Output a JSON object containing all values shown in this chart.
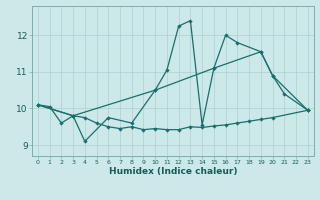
{
  "xlabel": "Humidex (Indice chaleur)",
  "xlim": [
    -0.5,
    23.5
  ],
  "ylim": [
    8.7,
    12.8
  ],
  "yticks": [
    9,
    10,
    11,
    12
  ],
  "xticks": [
    0,
    1,
    2,
    3,
    4,
    5,
    6,
    7,
    8,
    9,
    10,
    11,
    12,
    13,
    14,
    15,
    16,
    17,
    18,
    19,
    20,
    21,
    22,
    23
  ],
  "background_color": "#cce8e8",
  "grid_color": "#aad0d0",
  "line_color": "#1a6e6e",
  "series": [
    {
      "x": [
        0,
        1,
        2,
        3,
        4,
        5,
        6,
        7,
        8,
        9,
        10,
        11,
        12,
        13,
        14,
        15,
        16,
        17,
        18,
        19,
        20,
        23
      ],
      "y": [
        10.1,
        10.05,
        9.6,
        9.8,
        9.75,
        9.6,
        9.5,
        9.45,
        9.5,
        9.42,
        9.45,
        9.42,
        9.42,
        9.5,
        9.48,
        9.52,
        9.55,
        9.6,
        9.65,
        9.7,
        9.75,
        9.95
      ]
    },
    {
      "x": [
        0,
        3,
        4,
        6,
        8,
        10,
        11,
        12,
        13,
        14,
        15,
        16,
        17,
        19,
        20,
        21,
        23
      ],
      "y": [
        10.1,
        9.8,
        9.1,
        9.75,
        9.6,
        10.5,
        11.05,
        12.25,
        12.4,
        9.55,
        11.1,
        12.0,
        11.8,
        11.55,
        10.9,
        10.4,
        9.95
      ]
    },
    {
      "x": [
        0,
        3,
        10,
        15,
        19,
        20,
        23
      ],
      "y": [
        10.1,
        9.8,
        10.5,
        11.1,
        11.55,
        10.9,
        9.95
      ]
    }
  ]
}
